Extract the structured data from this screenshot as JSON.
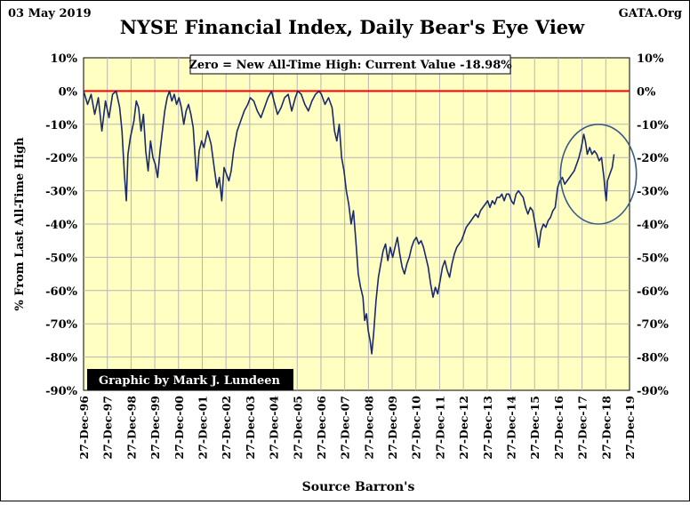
{
  "header": {
    "date": "03 May 2019",
    "source_site": "GATA.Org",
    "credit": "Graphic by Mark J. Lundeen"
  },
  "chart_data": {
    "type": "line",
    "title": "NYSE Financial Index, Daily Bear's Eye View",
    "annotation": "Zero = New All-Time High: Current Value  -18.98%",
    "xlabel": "Source Barron's",
    "ylabel": "% From Last All-Time High",
    "ylim": [
      -90,
      10
    ],
    "y_ticks": [
      "10%",
      "0%",
      "-10%",
      "-20%",
      "-30%",
      "-40%",
      "-50%",
      "-60%",
      "-70%",
      "-80%",
      "-90%"
    ],
    "x_range": [
      1996.98,
      2019.98
    ],
    "x_ticks": [
      "27-Dec-96",
      "27-Dec-97",
      "27-Dec-98",
      "27-Dec-99",
      "27-Dec-00",
      "27-Dec-01",
      "27-Dec-02",
      "27-Dec-03",
      "27-Dec-04",
      "27-Dec-05",
      "27-Dec-06",
      "27-Dec-07",
      "27-Dec-08",
      "27-Dec-09",
      "27-Dec-10",
      "27-Dec-11",
      "27-Dec-12",
      "27-Dec-13",
      "27-Dec-14",
      "27-Dec-15",
      "27-Dec-16",
      "27-Dec-17",
      "27-Dec-18",
      "27-Dec-19"
    ],
    "grid": true,
    "reference_line": {
      "y": 0,
      "color": "#ff0000"
    },
    "series": [
      {
        "color": "#1a2a6c",
        "points": [
          [
            1996.98,
            0
          ],
          [
            1997.15,
            -4
          ],
          [
            1997.3,
            -1
          ],
          [
            1997.45,
            -7
          ],
          [
            1997.6,
            -2
          ],
          [
            1997.75,
            -12
          ],
          [
            1997.9,
            -3
          ],
          [
            1998.05,
            -8
          ],
          [
            1998.2,
            -1
          ],
          [
            1998.35,
            0
          ],
          [
            1998.5,
            -5
          ],
          [
            1998.6,
            -12
          ],
          [
            1998.7,
            -25
          ],
          [
            1998.78,
            -33
          ],
          [
            1998.85,
            -19
          ],
          [
            1998.95,
            -14
          ],
          [
            1999.1,
            -9
          ],
          [
            1999.2,
            -3
          ],
          [
            1999.3,
            -5
          ],
          [
            1999.4,
            -12
          ],
          [
            1999.5,
            -7
          ],
          [
            1999.6,
            -18
          ],
          [
            1999.7,
            -24
          ],
          [
            1999.8,
            -15
          ],
          [
            1999.9,
            -20
          ],
          [
            2000.0,
            -22
          ],
          [
            2000.1,
            -26
          ],
          [
            2000.2,
            -18
          ],
          [
            2000.3,
            -12
          ],
          [
            2000.4,
            -6
          ],
          [
            2000.5,
            -2
          ],
          [
            2000.6,
            0
          ],
          [
            2000.7,
            -3
          ],
          [
            2000.8,
            -1
          ],
          [
            2000.9,
            -4
          ],
          [
            2001.0,
            -2
          ],
          [
            2001.1,
            -5
          ],
          [
            2001.2,
            -10
          ],
          [
            2001.3,
            -6
          ],
          [
            2001.4,
            -4
          ],
          [
            2001.5,
            -7
          ],
          [
            2001.6,
            -11
          ],
          [
            2001.7,
            -22
          ],
          [
            2001.75,
            -27
          ],
          [
            2001.85,
            -18
          ],
          [
            2001.95,
            -15
          ],
          [
            2002.05,
            -17
          ],
          [
            2002.2,
            -12
          ],
          [
            2002.35,
            -16
          ],
          [
            2002.5,
            -24
          ],
          [
            2002.6,
            -29
          ],
          [
            2002.7,
            -26
          ],
          [
            2002.8,
            -33
          ],
          [
            2002.9,
            -23
          ],
          [
            2003.0,
            -25
          ],
          [
            2003.1,
            -27
          ],
          [
            2003.2,
            -24
          ],
          [
            2003.3,
            -18
          ],
          [
            2003.45,
            -12
          ],
          [
            2003.6,
            -9
          ],
          [
            2003.75,
            -6
          ],
          [
            2003.9,
            -4
          ],
          [
            2004.0,
            -2
          ],
          [
            2004.15,
            -3
          ],
          [
            2004.3,
            -6
          ],
          [
            2004.45,
            -8
          ],
          [
            2004.6,
            -5
          ],
          [
            2004.75,
            -2
          ],
          [
            2004.9,
            0
          ],
          [
            2005.0,
            -3
          ],
          [
            2005.15,
            -7
          ],
          [
            2005.3,
            -5
          ],
          [
            2005.45,
            -2
          ],
          [
            2005.6,
            -1
          ],
          [
            2005.75,
            -6
          ],
          [
            2005.9,
            -2
          ],
          [
            2006.0,
            0
          ],
          [
            2006.15,
            -1
          ],
          [
            2006.3,
            -4
          ],
          [
            2006.45,
            -6
          ],
          [
            2006.6,
            -3
          ],
          [
            2006.75,
            -1
          ],
          [
            2006.9,
            0
          ],
          [
            2007.0,
            -1
          ],
          [
            2007.15,
            -4
          ],
          [
            2007.3,
            -2
          ],
          [
            2007.45,
            -5
          ],
          [
            2007.55,
            -12
          ],
          [
            2007.65,
            -15
          ],
          [
            2007.75,
            -10
          ],
          [
            2007.85,
            -20
          ],
          [
            2007.95,
            -24
          ],
          [
            2008.05,
            -30
          ],
          [
            2008.15,
            -34
          ],
          [
            2008.25,
            -40
          ],
          [
            2008.35,
            -36
          ],
          [
            2008.45,
            -45
          ],
          [
            2008.55,
            -55
          ],
          [
            2008.65,
            -59
          ],
          [
            2008.75,
            -62
          ],
          [
            2008.82,
            -69
          ],
          [
            2008.9,
            -67
          ],
          [
            2008.97,
            -72
          ],
          [
            2009.05,
            -75
          ],
          [
            2009.12,
            -79
          ],
          [
            2009.2,
            -73
          ],
          [
            2009.3,
            -63
          ],
          [
            2009.4,
            -56
          ],
          [
            2009.5,
            -52
          ],
          [
            2009.6,
            -48
          ],
          [
            2009.7,
            -46
          ],
          [
            2009.8,
            -51
          ],
          [
            2009.9,
            -47
          ],
          [
            2010.0,
            -50
          ],
          [
            2010.1,
            -47
          ],
          [
            2010.2,
            -44
          ],
          [
            2010.3,
            -49
          ],
          [
            2010.4,
            -53
          ],
          [
            2010.5,
            -55
          ],
          [
            2010.6,
            -52
          ],
          [
            2010.7,
            -50
          ],
          [
            2010.8,
            -47
          ],
          [
            2010.9,
            -45
          ],
          [
            2011.0,
            -44
          ],
          [
            2011.1,
            -46
          ],
          [
            2011.2,
            -45
          ],
          [
            2011.3,
            -47
          ],
          [
            2011.4,
            -50
          ],
          [
            2011.5,
            -53
          ],
          [
            2011.6,
            -58
          ],
          [
            2011.7,
            -62
          ],
          [
            2011.8,
            -59
          ],
          [
            2011.9,
            -61
          ],
          [
            2012.0,
            -57
          ],
          [
            2012.1,
            -53
          ],
          [
            2012.2,
            -51
          ],
          [
            2012.3,
            -54
          ],
          [
            2012.4,
            -56
          ],
          [
            2012.5,
            -52
          ],
          [
            2012.6,
            -49
          ],
          [
            2012.7,
            -47
          ],
          [
            2012.8,
            -46
          ],
          [
            2012.9,
            -45
          ],
          [
            2013.0,
            -43
          ],
          [
            2013.1,
            -41
          ],
          [
            2013.2,
            -40
          ],
          [
            2013.3,
            -39
          ],
          [
            2013.4,
            -38
          ],
          [
            2013.5,
            -37
          ],
          [
            2013.6,
            -38
          ],
          [
            2013.7,
            -36
          ],
          [
            2013.8,
            -35
          ],
          [
            2013.9,
            -34
          ],
          [
            2014.0,
            -33
          ],
          [
            2014.1,
            -35
          ],
          [
            2014.2,
            -33
          ],
          [
            2014.3,
            -34
          ],
          [
            2014.4,
            -32
          ],
          [
            2014.5,
            -32
          ],
          [
            2014.6,
            -31
          ],
          [
            2014.7,
            -33
          ],
          [
            2014.8,
            -31
          ],
          [
            2014.9,
            -31
          ],
          [
            2015.0,
            -33
          ],
          [
            2015.1,
            -34
          ],
          [
            2015.2,
            -31
          ],
          [
            2015.3,
            -30
          ],
          [
            2015.4,
            -31
          ],
          [
            2015.5,
            -32
          ],
          [
            2015.6,
            -35
          ],
          [
            2015.7,
            -37
          ],
          [
            2015.8,
            -35
          ],
          [
            2015.9,
            -36
          ],
          [
            2016.0,
            -40
          ],
          [
            2016.1,
            -44
          ],
          [
            2016.15,
            -47
          ],
          [
            2016.25,
            -42
          ],
          [
            2016.35,
            -40
          ],
          [
            2016.45,
            -41
          ],
          [
            2016.55,
            -39
          ],
          [
            2016.65,
            -38
          ],
          [
            2016.75,
            -36
          ],
          [
            2016.85,
            -35
          ],
          [
            2016.95,
            -29
          ],
          [
            2017.05,
            -27
          ],
          [
            2017.15,
            -26
          ],
          [
            2017.25,
            -28
          ],
          [
            2017.35,
            -27
          ],
          [
            2017.45,
            -26
          ],
          [
            2017.55,
            -25
          ],
          [
            2017.65,
            -24
          ],
          [
            2017.75,
            -22
          ],
          [
            2017.85,
            -20
          ],
          [
            2017.95,
            -17
          ],
          [
            2018.05,
            -13
          ],
          [
            2018.12,
            -15
          ],
          [
            2018.2,
            -19
          ],
          [
            2018.3,
            -17
          ],
          [
            2018.4,
            -19
          ],
          [
            2018.5,
            -18
          ],
          [
            2018.6,
            -19
          ],
          [
            2018.7,
            -21
          ],
          [
            2018.8,
            -20
          ],
          [
            2018.85,
            -23
          ],
          [
            2018.9,
            -26
          ],
          [
            2018.95,
            -30
          ],
          [
            2019.0,
            -33
          ],
          [
            2019.05,
            -27
          ],
          [
            2019.15,
            -25
          ],
          [
            2019.25,
            -23
          ],
          [
            2019.33,
            -19
          ]
        ]
      }
    ],
    "highlight_ellipse": {
      "cx": 2018.67,
      "cy": -25,
      "rx": 1.6,
      "ry": 15
    }
  },
  "colors": {
    "plot_background": "#ffffc2",
    "grid": "#b5b5b5",
    "zero_line": "#ff0000",
    "series": "#1a2a6c",
    "ellipse": "#3a5a8a",
    "credit_background": "#000000",
    "credit_text": "#ffffff"
  }
}
